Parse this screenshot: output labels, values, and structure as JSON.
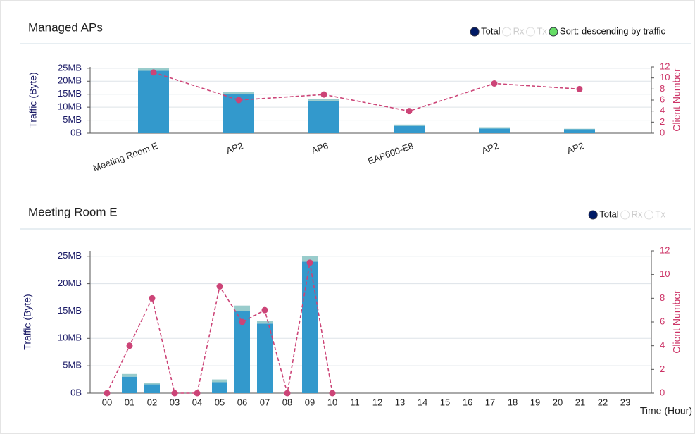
{
  "chart_data": [
    {
      "type": "bar",
      "title": "Managed APs",
      "legend": [
        {
          "label": "Total",
          "color": "#001a66",
          "selected": true
        },
        {
          "label": "Rx",
          "color": "#ffffff"
        },
        {
          "label": "Tx",
          "color": "#ffffff"
        },
        {
          "label": "Sort: descending by traffic",
          "color": "#66dd66",
          "selected": true
        }
      ],
      "ylabel": "Traffic (Byte)",
      "y2label": "Client Number",
      "categories": [
        "Meeting Room E",
        "AP2",
        "AP6",
        "EAP600-E8",
        "AP2",
        "AP2"
      ],
      "series": [
        {
          "type": "bar",
          "color": "#3399cc",
          "values": [
            24,
            15,
            12.5,
            2.8,
            1.8,
            1.5
          ]
        },
        {
          "type": "bar",
          "color": "#99cccc",
          "values": [
            1,
            1,
            0.7,
            0.5,
            0.5,
            0.2
          ]
        },
        {
          "type": "line",
          "axis": "y2",
          "color": "#cc4477",
          "values": [
            11,
            6,
            7,
            4,
            9,
            8
          ]
        }
      ],
      "ylim": [
        0,
        25.5
      ],
      "yticks": [
        {
          "value": 0,
          "label": "0B"
        },
        {
          "value": 5,
          "label": "5MB"
        },
        {
          "value": 10,
          "label": "10MB"
        },
        {
          "value": 15,
          "label": "15MB"
        },
        {
          "value": 20,
          "label": "20MB"
        },
        {
          "value": 25,
          "label": "25MB"
        }
      ],
      "y2lim": [
        0,
        12
      ],
      "y2ticks": [
        0,
        2,
        4,
        6,
        8,
        10,
        12
      ],
      "grid": true
    },
    {
      "type": "bar",
      "title": "Meeting Room E",
      "legend": [
        {
          "label": "Total",
          "color": "#001a66",
          "selected": true
        },
        {
          "label": "Rx",
          "color": "#ffffff"
        },
        {
          "label": "Tx",
          "color": "#ffffff"
        }
      ],
      "ylabel": "Traffic (Byte)",
      "y2label": "Client Number",
      "xlabel": "Time (Hour)",
      "categories": [
        "00",
        "01",
        "02",
        "03",
        "04",
        "05",
        "06",
        "07",
        "08",
        "09",
        "10",
        "11",
        "12",
        "13",
        "14",
        "15",
        "16",
        "17",
        "18",
        "19",
        "20",
        "21",
        "22",
        "23"
      ],
      "series": [
        {
          "type": "bar",
          "color": "#3399cc",
          "values": [
            0,
            3,
            1.6,
            0,
            0,
            2,
            15,
            12.7,
            0,
            24,
            0,
            null,
            null,
            null,
            null,
            null,
            null,
            null,
            null,
            null,
            null,
            null,
            null,
            null
          ]
        },
        {
          "type": "bar",
          "color": "#99cccc",
          "values": [
            0,
            0.5,
            0.2,
            0,
            0,
            0.5,
            1,
            0.5,
            0,
            1,
            0,
            null,
            null,
            null,
            null,
            null,
            null,
            null,
            null,
            null,
            null,
            null,
            null,
            null
          ]
        },
        {
          "type": "line",
          "axis": "y2",
          "color": "#cc4477",
          "values": [
            0,
            4,
            8,
            0,
            0,
            9,
            6,
            7,
            0,
            11,
            0,
            null,
            null,
            null,
            null,
            null,
            null,
            null,
            null,
            null,
            null,
            null,
            null,
            null
          ]
        }
      ],
      "ylim": [
        0,
        26
      ],
      "yticks": [
        {
          "value": 0,
          "label": "0B"
        },
        {
          "value": 5,
          "label": "5MB"
        },
        {
          "value": 10,
          "label": "10MB"
        },
        {
          "value": 15,
          "label": "15MB"
        },
        {
          "value": 20,
          "label": "20MB"
        },
        {
          "value": 25,
          "label": "25MB"
        }
      ],
      "y2lim": [
        0,
        12
      ],
      "y2ticks": [
        0,
        2,
        4,
        6,
        8,
        10,
        12
      ],
      "grid": true
    }
  ]
}
